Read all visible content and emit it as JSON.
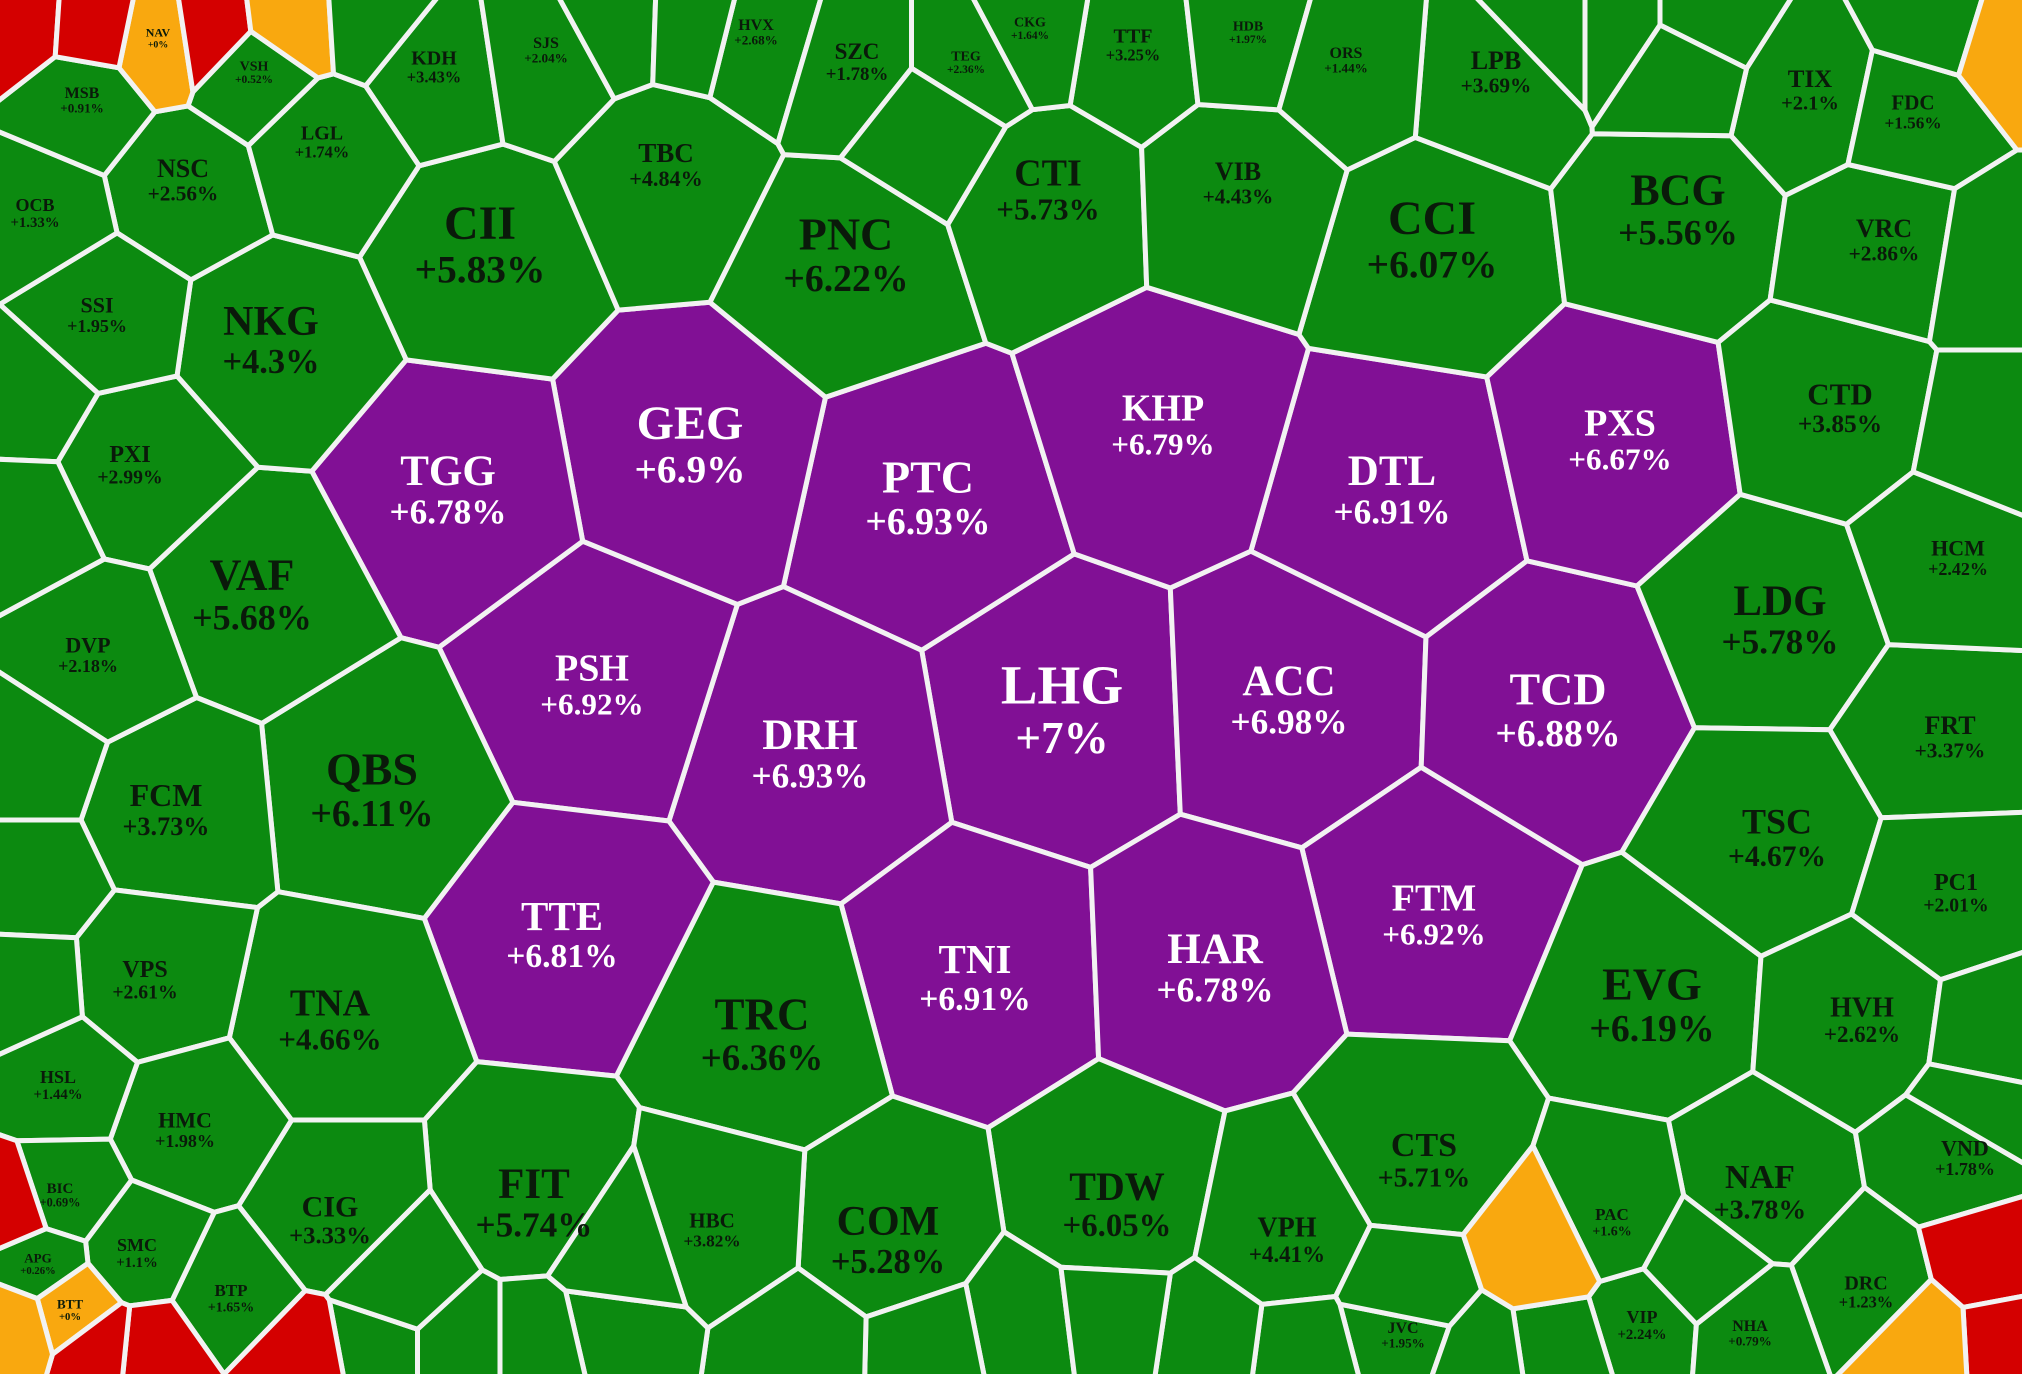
{
  "colors": {
    "up": "#0c8a10",
    "ceiling": "#811095",
    "flat": "#f9a80f",
    "down": "#d40000",
    "text_dark": "#0a1a0a",
    "text_light": "#ffffff",
    "border": "#f2f2f2"
  },
  "stocks": [
    {
      "code": "LHG",
      "change": "+7%",
      "status": "ceiling"
    },
    {
      "code": "ACC",
      "change": "+6.98%",
      "status": "ceiling"
    },
    {
      "code": "PTC",
      "change": "+6.93%",
      "status": "ceiling"
    },
    {
      "code": "DRH",
      "change": "+6.93%",
      "status": "ceiling"
    },
    {
      "code": "PSH",
      "change": "+6.92%",
      "status": "ceiling"
    },
    {
      "code": "FTM",
      "change": "+6.92%",
      "status": "ceiling"
    },
    {
      "code": "DTL",
      "change": "+6.91%",
      "status": "ceiling"
    },
    {
      "code": "TNI",
      "change": "+6.91%",
      "status": "ceiling"
    },
    {
      "code": "GEG",
      "change": "+6.9%",
      "status": "ceiling"
    },
    {
      "code": "TCD",
      "change": "+6.88%",
      "status": "ceiling"
    },
    {
      "code": "TTE",
      "change": "+6.81%",
      "status": "ceiling"
    },
    {
      "code": "KHP",
      "change": "+6.79%",
      "status": "ceiling"
    },
    {
      "code": "TGG",
      "change": "+6.78%",
      "status": "ceiling"
    },
    {
      "code": "HAR",
      "change": "+6.78%",
      "status": "ceiling"
    },
    {
      "code": "PXS",
      "change": "+6.67%",
      "status": "ceiling"
    },
    {
      "code": "TRC",
      "change": "+6.36%",
      "status": "up"
    },
    {
      "code": "PNC",
      "change": "+6.22%",
      "status": "up"
    },
    {
      "code": "EVG",
      "change": "+6.19%",
      "status": "up"
    },
    {
      "code": "QBS",
      "change": "+6.11%",
      "status": "up"
    },
    {
      "code": "CCI",
      "change": "+6.07%",
      "status": "up"
    },
    {
      "code": "TDW",
      "change": "+6.05%",
      "status": "up"
    },
    {
      "code": "CII",
      "change": "+5.83%",
      "status": "up"
    },
    {
      "code": "LDG",
      "change": "+5.78%",
      "status": "up"
    },
    {
      "code": "FIT",
      "change": "+5.74%",
      "status": "up"
    },
    {
      "code": "CTI",
      "change": "+5.73%",
      "status": "up"
    },
    {
      "code": "CTS",
      "change": "+5.71%",
      "status": "up"
    },
    {
      "code": "VAF",
      "change": "+5.68%",
      "status": "up"
    },
    {
      "code": "BCG",
      "change": "+5.56%",
      "status": "up"
    },
    {
      "code": "COM",
      "change": "+5.28%",
      "status": "up"
    },
    {
      "code": "TBC",
      "change": "+4.84%",
      "status": "up"
    },
    {
      "code": "TSC",
      "change": "+4.67%",
      "status": "up"
    },
    {
      "code": "TNA",
      "change": "+4.66%",
      "status": "up"
    },
    {
      "code": "VIB",
      "change": "+4.43%",
      "status": "up"
    },
    {
      "code": "VPH",
      "change": "+4.41%",
      "status": "up"
    },
    {
      "code": "NKG",
      "change": "+4.3%",
      "status": "up"
    },
    {
      "code": "CTD",
      "change": "+3.85%",
      "status": "up"
    },
    {
      "code": "HBC",
      "change": "+3.82%",
      "status": "up"
    },
    {
      "code": "NAF",
      "change": "+3.78%",
      "status": "up"
    },
    {
      "code": "FCM",
      "change": "+3.73%",
      "status": "up"
    },
    {
      "code": "LPB",
      "change": "+3.69%",
      "status": "up"
    },
    {
      "code": "KDH",
      "change": "+3.43%",
      "status": "up"
    },
    {
      "code": "FRT",
      "change": "+3.37%",
      "status": "up"
    },
    {
      "code": "CIG",
      "change": "+3.33%",
      "status": "up"
    },
    {
      "code": "TTF",
      "change": "+3.25%",
      "status": "up"
    },
    {
      "code": "PXI",
      "change": "+2.99%",
      "status": "up"
    },
    {
      "code": "VRC",
      "change": "+2.86%",
      "status": "up"
    },
    {
      "code": "HVX",
      "change": "+2.68%",
      "status": "up"
    },
    {
      "code": "HVH",
      "change": "+2.62%",
      "status": "up"
    },
    {
      "code": "VPS",
      "change": "+2.61%",
      "status": "up"
    },
    {
      "code": "NSC",
      "change": "+2.56%",
      "status": "up"
    },
    {
      "code": "HCM",
      "change": "+2.42%",
      "status": "up"
    },
    {
      "code": "TEG",
      "change": "+2.36%",
      "status": "up"
    },
    {
      "code": "VIP",
      "change": "+2.24%",
      "status": "up"
    },
    {
      "code": "DVP",
      "change": "+2.18%",
      "status": "up"
    },
    {
      "code": "TIX",
      "change": "+2.1%",
      "status": "up"
    },
    {
      "code": "SJS",
      "change": "+2.04%",
      "status": "up"
    },
    {
      "code": "PC1",
      "change": "+2.01%",
      "status": "up"
    },
    {
      "code": "HMC",
      "change": "+1.98%",
      "status": "up"
    },
    {
      "code": "HDB",
      "change": "+1.97%",
      "status": "up"
    },
    {
      "code": "SSI",
      "change": "+1.95%",
      "status": "up"
    },
    {
      "code": "JVC",
      "change": "+1.95%",
      "status": "up"
    },
    {
      "code": "SZC",
      "change": "+1.78%",
      "status": "up"
    },
    {
      "code": "VND",
      "change": "+1.78%",
      "status": "up"
    },
    {
      "code": "LGL",
      "change": "+1.74%",
      "status": "up"
    },
    {
      "code": "BTP",
      "change": "+1.65%",
      "status": "up"
    },
    {
      "code": "CKG",
      "change": "+1.64%",
      "status": "up"
    },
    {
      "code": "PAC",
      "change": "+1.6%",
      "status": "up"
    },
    {
      "code": "FDC",
      "change": "+1.56%",
      "status": "up"
    },
    {
      "code": "HSL",
      "change": "+1.44%",
      "status": "up"
    },
    {
      "code": "ORS",
      "change": "+1.44%",
      "status": "up"
    },
    {
      "code": "OCB",
      "change": "+1.33%",
      "status": "up"
    },
    {
      "code": "DRC",
      "change": "+1.23%",
      "status": "up"
    },
    {
      "code": "SMC",
      "change": "+1.1%",
      "status": "up"
    },
    {
      "code": "MSB",
      "change": "+0.91%",
      "status": "up"
    },
    {
      "code": "NHA",
      "change": "+0.79%",
      "status": "up"
    },
    {
      "code": "BIC",
      "change": "+0.69%",
      "status": "up"
    },
    {
      "code": "VSH",
      "change": "+0.52%",
      "status": "up"
    },
    {
      "code": "APG",
      "change": "+0.26%",
      "status": "up"
    },
    {
      "code": "BTT",
      "change": "+0%",
      "status": "flat"
    },
    {
      "code": "NAV",
      "change": "+0%",
      "status": "flat"
    }
  ]
}
